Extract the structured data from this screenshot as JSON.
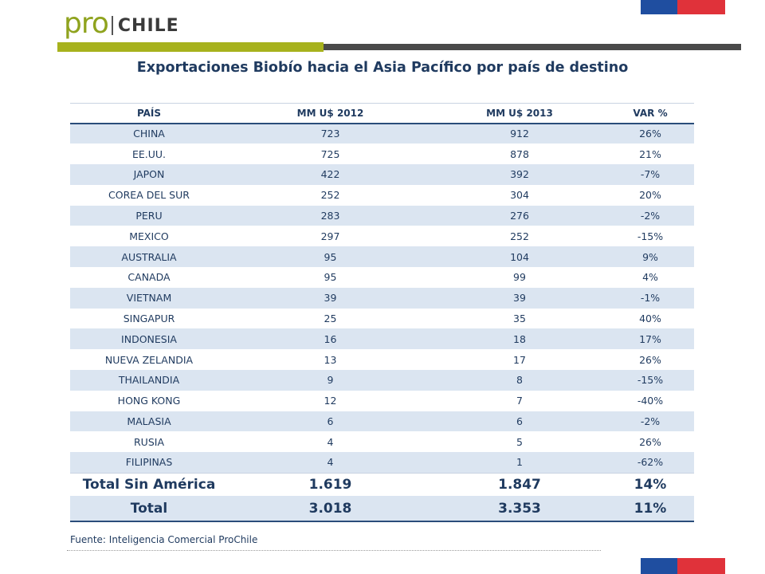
{
  "brand": {
    "pro": "pro",
    "chile": "CHILE"
  },
  "colors": {
    "green": "#a7b21d",
    "dark": "#4a4a4a",
    "blue": "#1f4ea0",
    "red": "#e0323a",
    "text": "#1f3a5f",
    "band": "#dbe5f1"
  },
  "title": "Exportaciones Biobío hacia el Asia Pacífico por país de destino",
  "table": {
    "headers": [
      "PAÍS",
      "MM U$ 2012",
      "MM U$ 2013",
      "VAR %"
    ],
    "rows": [
      [
        "CHINA",
        "723",
        "912",
        "26%"
      ],
      [
        "EE.UU.",
        "725",
        "878",
        "21%"
      ],
      [
        "JAPON",
        "422",
        "392",
        "-7%"
      ],
      [
        "COREA DEL SUR",
        "252",
        "304",
        "20%"
      ],
      [
        "PERU",
        "283",
        "276",
        "-2%"
      ],
      [
        "MEXICO",
        "297",
        "252",
        "-15%"
      ],
      [
        "AUSTRALIA",
        "95",
        "104",
        "9%"
      ],
      [
        "CANADA",
        "95",
        "99",
        "4%"
      ],
      [
        "VIETNAM",
        "39",
        "39",
        "-1%"
      ],
      [
        "SINGAPUR",
        "25",
        "35",
        "40%"
      ],
      [
        "INDONESIA",
        "16",
        "18",
        "17%"
      ],
      [
        "NUEVA ZELANDIA",
        "13",
        "17",
        "26%"
      ],
      [
        "THAILANDIA",
        "9",
        "8",
        "-15%"
      ],
      [
        "HONG KONG",
        "12",
        "7",
        "-40%"
      ],
      [
        "MALASIA",
        "6",
        "6",
        "-2%"
      ],
      [
        "RUSIA",
        "4",
        "5",
        "26%"
      ],
      [
        "FILIPINAS",
        "4",
        "1",
        "-62%"
      ]
    ],
    "totals": [
      [
        "Total Sin América",
        "1.619",
        "1.847",
        "14%"
      ],
      [
        "Total",
        "3.018",
        "3.353",
        "11%"
      ]
    ]
  },
  "source": "Fuente: Inteligencia Comercial ProChile"
}
